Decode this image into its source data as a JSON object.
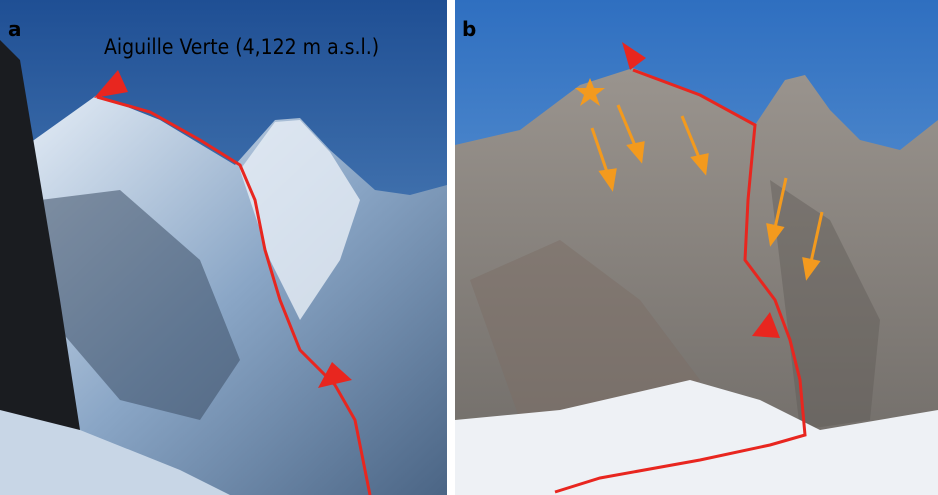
{
  "panels": [
    {
      "label": "a",
      "caption": "Aiguille Verte (4,122 m a.s.l.)"
    },
    {
      "label": "b"
    }
  ]
}
